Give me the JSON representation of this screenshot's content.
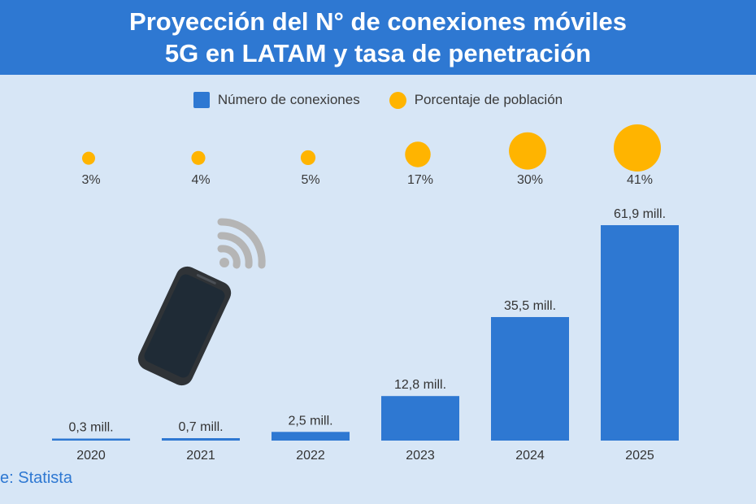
{
  "title": {
    "line1": "Proyección del N° de conexiones móviles",
    "line2": "5G en LATAM y tasa de penetración"
  },
  "legend": {
    "bars_label": "Número de conexiones",
    "circles_label": "Porcentaje de población"
  },
  "source": "e: Statista",
  "colors": {
    "header": "#2e78d2",
    "bar": "#2e78d2",
    "circle": "#ffb400",
    "background": "#d7e6f6",
    "phone": "#2f3337",
    "wifi": "#b5b5b5"
  },
  "icons": [
    "smartphone-icon",
    "wifi-signal-icon"
  ],
  "chart_data": {
    "type": "bar",
    "categories": [
      "2020",
      "2021",
      "2022",
      "2023",
      "2024",
      "2025"
    ],
    "series": [
      {
        "name": "Número de conexiones",
        "values": [
          0.3,
          0.7,
          2.5,
          12.8,
          35.5,
          61.9
        ],
        "labels": [
          "0,3 mill.",
          "0,7 mill.",
          "2,5 mill.",
          "12,8 mill.",
          "35,5 mill.",
          "61,9 mill."
        ]
      },
      {
        "name": "Porcentaje de población",
        "values": [
          3,
          4,
          5,
          17,
          30,
          41
        ],
        "labels": [
          "3%",
          "4%",
          "5%",
          "17%",
          "30%",
          "41%"
        ]
      }
    ],
    "ylim": [
      0,
      61.9
    ],
    "grid": false,
    "legend_position": "top"
  }
}
